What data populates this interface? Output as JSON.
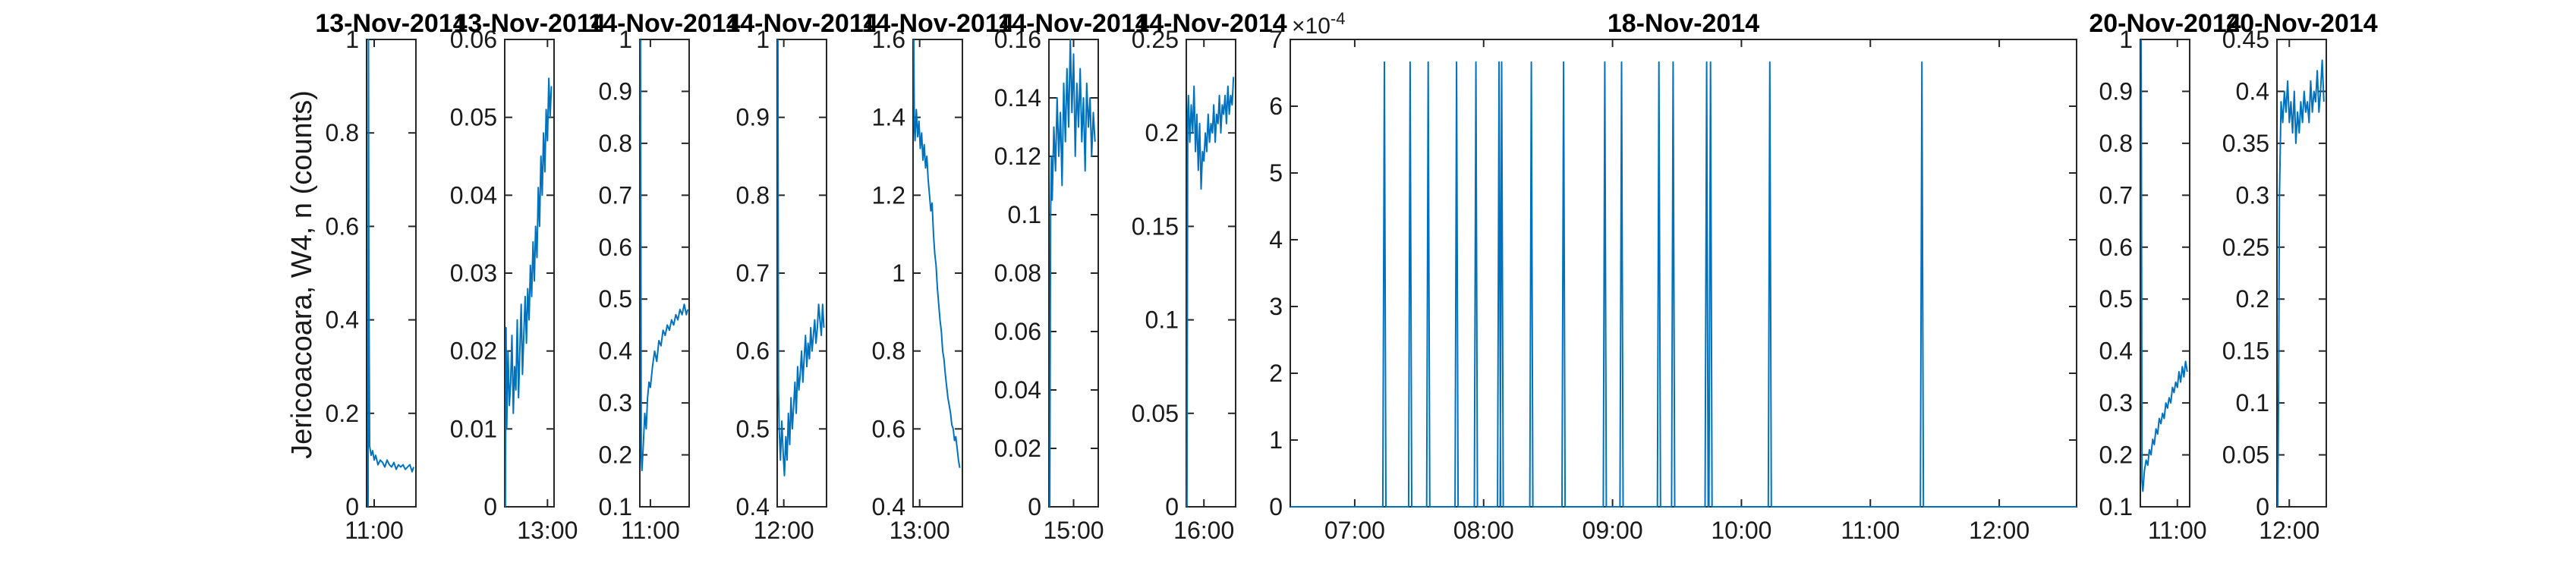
{
  "chart_data": {
    "type": "line",
    "ylabel": "Jericoacoara, W4, n (counts)",
    "series_color": "#0072BD",
    "panels": [
      {
        "title": "13-Nov-2014",
        "ylim": [
          0,
          1
        ],
        "yticks": [
          0,
          0.2,
          0.4,
          0.6,
          0.8,
          1
        ],
        "yticklabels": [
          "0",
          "0.2",
          "0.4",
          "0.6",
          "0.8",
          "1"
        ],
        "xlim": [
          10.9,
          11.55
        ],
        "xticks": [
          11.0
        ],
        "xticklabels": [
          "11:00"
        ],
        "x": [
          10.92,
          10.925,
          10.93,
          10.94,
          10.96,
          10.98,
          11.0,
          11.02,
          11.05,
          11.08,
          11.11,
          11.14,
          11.17,
          11.2,
          11.23,
          11.26,
          11.29,
          11.32,
          11.35,
          11.38,
          11.41,
          11.44,
          11.47,
          11.5,
          11.52
        ],
        "y": [
          0.0,
          1.0,
          0.5,
          0.13,
          0.11,
          0.12,
          0.1,
          0.11,
          0.09,
          0.1,
          0.095,
          0.085,
          0.1,
          0.09,
          0.085,
          0.095,
          0.08,
          0.09,
          0.085,
          0.09,
          0.08,
          0.085,
          0.09,
          0.075,
          0.085
        ]
      },
      {
        "title": "13-Nov-2014",
        "ylim": [
          0,
          0.06
        ],
        "yticks": [
          0,
          0.01,
          0.02,
          0.03,
          0.04,
          0.05,
          0.06
        ],
        "yticklabels": [
          "0",
          "0.01",
          "0.02",
          "0.03",
          "0.04",
          "0.05",
          "0.06"
        ],
        "xlim": [
          12.35,
          13.1
        ],
        "xticks": [
          13.0
        ],
        "xticklabels": [
          "13:00"
        ],
        "x": [
          12.36,
          12.37,
          12.38,
          12.4,
          12.42,
          12.44,
          12.46,
          12.48,
          12.5,
          12.52,
          12.54,
          12.56,
          12.58,
          12.6,
          12.62,
          12.64,
          12.66,
          12.68,
          12.7,
          12.72,
          12.74,
          12.76,
          12.78,
          12.8,
          12.82,
          12.84,
          12.86,
          12.88,
          12.9,
          12.92,
          12.94,
          12.96,
          12.98,
          13.0,
          13.02,
          13.04,
          13.06
        ],
        "y": [
          0.0,
          0.023,
          0.01,
          0.02,
          0.013,
          0.016,
          0.022,
          0.012,
          0.018,
          0.015,
          0.024,
          0.014,
          0.02,
          0.026,
          0.017,
          0.022,
          0.027,
          0.021,
          0.028,
          0.024,
          0.031,
          0.027,
          0.034,
          0.029,
          0.036,
          0.032,
          0.041,
          0.036,
          0.045,
          0.04,
          0.048,
          0.043,
          0.051,
          0.047,
          0.055,
          0.05,
          0.054
        ]
      },
      {
        "title": "14-Nov-2014",
        "ylim": [
          0.1,
          1
        ],
        "yticks": [
          0.1,
          0.2,
          0.3,
          0.4,
          0.5,
          0.6,
          0.7,
          0.8,
          0.9,
          1
        ],
        "yticklabels": [
          "0.1",
          "0.2",
          "0.3",
          "0.4",
          "0.5",
          "0.6",
          "0.7",
          "0.8",
          "0.9",
          "1"
        ],
        "xlim": [
          10.85,
          11.55
        ],
        "xticks": [
          11.0
        ],
        "xticklabels": [
          "11:00"
        ],
        "x": [
          10.86,
          10.87,
          10.88,
          10.9,
          10.92,
          10.94,
          10.96,
          10.98,
          11.0,
          11.03,
          11.06,
          11.09,
          11.12,
          11.15,
          11.18,
          11.21,
          11.24,
          11.27,
          11.3,
          11.33,
          11.36,
          11.39,
          11.42,
          11.45,
          11.48,
          11.51,
          11.53
        ],
        "y": [
          1.0,
          0.2,
          0.17,
          0.22,
          0.28,
          0.25,
          0.31,
          0.34,
          0.33,
          0.37,
          0.4,
          0.38,
          0.42,
          0.41,
          0.44,
          0.43,
          0.45,
          0.44,
          0.46,
          0.45,
          0.47,
          0.46,
          0.48,
          0.47,
          0.49,
          0.47,
          0.48
        ]
      },
      {
        "title": "14-Nov-2014",
        "ylim": [
          0.4,
          1
        ],
        "yticks": [
          0.4,
          0.5,
          0.6,
          0.7,
          0.8,
          0.9,
          1
        ],
        "yticklabels": [
          "0.4",
          "0.5",
          "0.6",
          "0.7",
          "0.8",
          "0.9",
          "1"
        ],
        "xlim": [
          11.9,
          12.65
        ],
        "xticks": [
          12.0
        ],
        "xticklabels": [
          "12:00"
        ],
        "x": [
          11.91,
          11.92,
          11.93,
          11.95,
          11.97,
          11.99,
          12.01,
          12.03,
          12.05,
          12.07,
          12.09,
          12.11,
          12.13,
          12.15,
          12.17,
          12.19,
          12.21,
          12.23,
          12.25,
          12.27,
          12.29,
          12.31,
          12.33,
          12.35,
          12.37,
          12.39,
          12.41,
          12.43,
          12.45,
          12.47,
          12.49,
          12.51,
          12.53,
          12.55,
          12.57,
          12.59,
          12.61
        ],
        "y": [
          1.0,
          0.55,
          0.5,
          0.46,
          0.51,
          0.47,
          0.44,
          0.49,
          0.46,
          0.52,
          0.48,
          0.54,
          0.5,
          0.53,
          0.56,
          0.52,
          0.58,
          0.55,
          0.57,
          0.6,
          0.56,
          0.59,
          0.62,
          0.58,
          0.61,
          0.59,
          0.63,
          0.6,
          0.62,
          0.64,
          0.61,
          0.63,
          0.66,
          0.64,
          0.62,
          0.66,
          0.63
        ]
      },
      {
        "title": "14-Nov-2014",
        "ylim": [
          0.4,
          1.6
        ],
        "yticks": [
          0.4,
          0.6,
          0.8,
          1.0,
          1.2,
          1.4,
          1.6
        ],
        "yticklabels": [
          "0.4",
          "0.6",
          "0.8",
          "1",
          "1.2",
          "1.4",
          "1.6"
        ],
        "xlim": [
          12.9,
          13.65
        ],
        "xticks": [
          13.0
        ],
        "xticklabels": [
          "13:00"
        ],
        "x": [
          12.91,
          12.92,
          12.93,
          12.95,
          12.97,
          12.99,
          13.01,
          13.03,
          13.05,
          13.07,
          13.09,
          13.11,
          13.13,
          13.15,
          13.17,
          13.19,
          13.21,
          13.23,
          13.25,
          13.27,
          13.29,
          13.31,
          13.33,
          13.35,
          13.37,
          13.39,
          13.41,
          13.43,
          13.45,
          13.47,
          13.49,
          13.51,
          13.53,
          13.55,
          13.57,
          13.59,
          13.61
        ],
        "y": [
          1.6,
          1.38,
          1.34,
          1.42,
          1.35,
          1.39,
          1.32,
          1.36,
          1.29,
          1.33,
          1.27,
          1.3,
          1.24,
          1.2,
          1.16,
          1.18,
          1.1,
          1.05,
          1.02,
          0.96,
          0.92,
          0.88,
          0.85,
          0.8,
          0.78,
          0.74,
          0.71,
          0.68,
          0.66,
          0.64,
          0.61,
          0.6,
          0.57,
          0.58,
          0.55,
          0.52,
          0.5
        ]
      },
      {
        "title": "14-Nov-2014",
        "ylim": [
          0,
          0.16
        ],
        "yticks": [
          0,
          0.02,
          0.04,
          0.06,
          0.08,
          0.1,
          0.12,
          0.14,
          0.16
        ],
        "yticklabels": [
          "0",
          "0.02",
          "0.04",
          "0.06",
          "0.08",
          "0.1",
          "0.12",
          "0.14",
          "0.16"
        ],
        "xlim": [
          14.7,
          15.3
        ],
        "xticks": [
          15.0
        ],
        "xticklabels": [
          "15:00"
        ],
        "x": [
          14.71,
          14.72,
          14.73,
          14.74,
          14.76,
          14.78,
          14.8,
          14.82,
          14.84,
          14.86,
          14.88,
          14.9,
          14.92,
          14.94,
          14.96,
          14.98,
          15.0,
          15.02,
          15.04,
          15.06,
          15.08,
          15.1,
          15.12,
          15.14,
          15.16,
          15.18,
          15.2,
          15.22,
          15.24,
          15.26
        ],
        "y": [
          0.0,
          0.1,
          0.12,
          0.105,
          0.13,
          0.115,
          0.14,
          0.12,
          0.135,
          0.11,
          0.145,
          0.125,
          0.15,
          0.13,
          0.16,
          0.135,
          0.155,
          0.12,
          0.145,
          0.13,
          0.15,
          0.125,
          0.14,
          0.115,
          0.145,
          0.13,
          0.14,
          0.12,
          0.135,
          0.125
        ]
      },
      {
        "title": "14-Nov-2014",
        "ylim": [
          0,
          0.25
        ],
        "yticks": [
          0,
          0.05,
          0.1,
          0.15,
          0.2,
          0.25
        ],
        "yticklabels": [
          "0",
          "0.05",
          "0.1",
          "0.15",
          "0.2",
          "0.25"
        ],
        "xlim": [
          15.75,
          16.45
        ],
        "xticks": [
          16.0
        ],
        "xticklabels": [
          "16:00"
        ],
        "x": [
          15.76,
          15.77,
          15.78,
          15.8,
          15.82,
          15.84,
          15.86,
          15.88,
          15.9,
          15.92,
          15.94,
          15.96,
          15.98,
          16.0,
          16.02,
          16.04,
          16.06,
          16.08,
          16.1,
          16.12,
          16.14,
          16.16,
          16.18,
          16.2,
          16.22,
          16.24,
          16.26,
          16.28,
          16.3,
          16.32,
          16.34,
          16.36,
          16.38,
          16.4,
          16.42
        ],
        "y": [
          0.0,
          0.21,
          0.22,
          0.195,
          0.215,
          0.2,
          0.225,
          0.19,
          0.21,
          0.18,
          0.205,
          0.17,
          0.19,
          0.185,
          0.2,
          0.19,
          0.21,
          0.195,
          0.205,
          0.2,
          0.215,
          0.195,
          0.21,
          0.205,
          0.22,
          0.2,
          0.215,
          0.21,
          0.22,
          0.205,
          0.225,
          0.21,
          0.22,
          0.215,
          0.23
        ]
      },
      {
        "title": "18-Nov-2014",
        "ylim": [
          0,
          0.0007
        ],
        "yticks": [
          0,
          0.0001,
          0.0002,
          0.0003,
          0.0004,
          0.0005,
          0.0006,
          0.0007
        ],
        "yticklabels": [
          "0",
          "1",
          "2",
          "3",
          "4",
          "5",
          "6",
          "7"
        ],
        "yexponent_base": "×10",
        "yexponent_power": "-4",
        "xlim": [
          6.5,
          12.6
        ],
        "xticks": [
          7,
          8,
          9,
          10,
          11,
          12
        ],
        "xticklabels": [
          "07:00",
          "08:00",
          "09:00",
          "10:00",
          "11:00",
          "12:00"
        ],
        "baseline": 0,
        "spike_value": 0.000666,
        "spikes_x": [
          7.23,
          7.43,
          7.57,
          7.79,
          7.94,
          8.12,
          8.14,
          8.37,
          8.62,
          8.94,
          9.07,
          9.36,
          9.47,
          9.73,
          9.76,
          10.22,
          11.4
        ]
      },
      {
        "title": "20-Nov-2014",
        "ylim": [
          0.1,
          1
        ],
        "yticks": [
          0.1,
          0.2,
          0.3,
          0.4,
          0.5,
          0.6,
          0.7,
          0.8,
          0.9,
          1
        ],
        "yticklabels": [
          "0.1",
          "0.2",
          "0.3",
          "0.4",
          "0.5",
          "0.6",
          "0.7",
          "0.8",
          "0.9",
          "1"
        ],
        "xlim": [
          10.55,
          11.15
        ],
        "xticks": [
          11.0
        ],
        "xticklabels": [
          "11:00"
        ],
        "x": [
          10.56,
          10.57,
          10.58,
          10.6,
          10.62,
          10.64,
          10.66,
          10.68,
          10.7,
          10.72,
          10.74,
          10.76,
          10.78,
          10.8,
          10.82,
          10.84,
          10.86,
          10.88,
          10.9,
          10.92,
          10.94,
          10.96,
          10.98,
          11.0,
          11.02,
          11.04,
          11.06,
          11.08,
          11.1,
          11.12
        ],
        "y": [
          1.0,
          0.15,
          0.13,
          0.17,
          0.19,
          0.18,
          0.21,
          0.2,
          0.23,
          0.22,
          0.25,
          0.24,
          0.27,
          0.26,
          0.28,
          0.27,
          0.3,
          0.29,
          0.31,
          0.3,
          0.33,
          0.32,
          0.34,
          0.33,
          0.36,
          0.34,
          0.37,
          0.35,
          0.38,
          0.36
        ]
      },
      {
        "title": "20-Nov-2014",
        "ylim": [
          0,
          0.45
        ],
        "yticks": [
          0,
          0.05,
          0.1,
          0.15,
          0.2,
          0.25,
          0.3,
          0.35,
          0.4,
          0.45
        ],
        "yticklabels": [
          "0",
          "0.05",
          "0.1",
          "0.15",
          "0.2",
          "0.25",
          "0.3",
          "0.35",
          "0.4",
          "0.45"
        ],
        "xlim": [
          11.85,
          12.45
        ],
        "xticks": [
          12.0
        ],
        "xticklabels": [
          "12:00"
        ],
        "x": [
          11.86,
          11.87,
          11.88,
          11.9,
          11.92,
          11.94,
          11.96,
          11.98,
          12.0,
          12.02,
          12.04,
          12.06,
          12.08,
          12.1,
          12.12,
          12.14,
          12.16,
          12.18,
          12.2,
          12.22,
          12.24,
          12.26,
          12.28,
          12.3,
          12.32,
          12.34,
          12.36,
          12.38,
          12.4,
          12.42
        ],
        "y": [
          0.0,
          0.12,
          0.3,
          0.39,
          0.37,
          0.4,
          0.38,
          0.41,
          0.37,
          0.39,
          0.36,
          0.4,
          0.35,
          0.38,
          0.36,
          0.39,
          0.37,
          0.4,
          0.38,
          0.39,
          0.37,
          0.41,
          0.38,
          0.4,
          0.39,
          0.42,
          0.38,
          0.4,
          0.43,
          0.39
        ]
      }
    ]
  }
}
